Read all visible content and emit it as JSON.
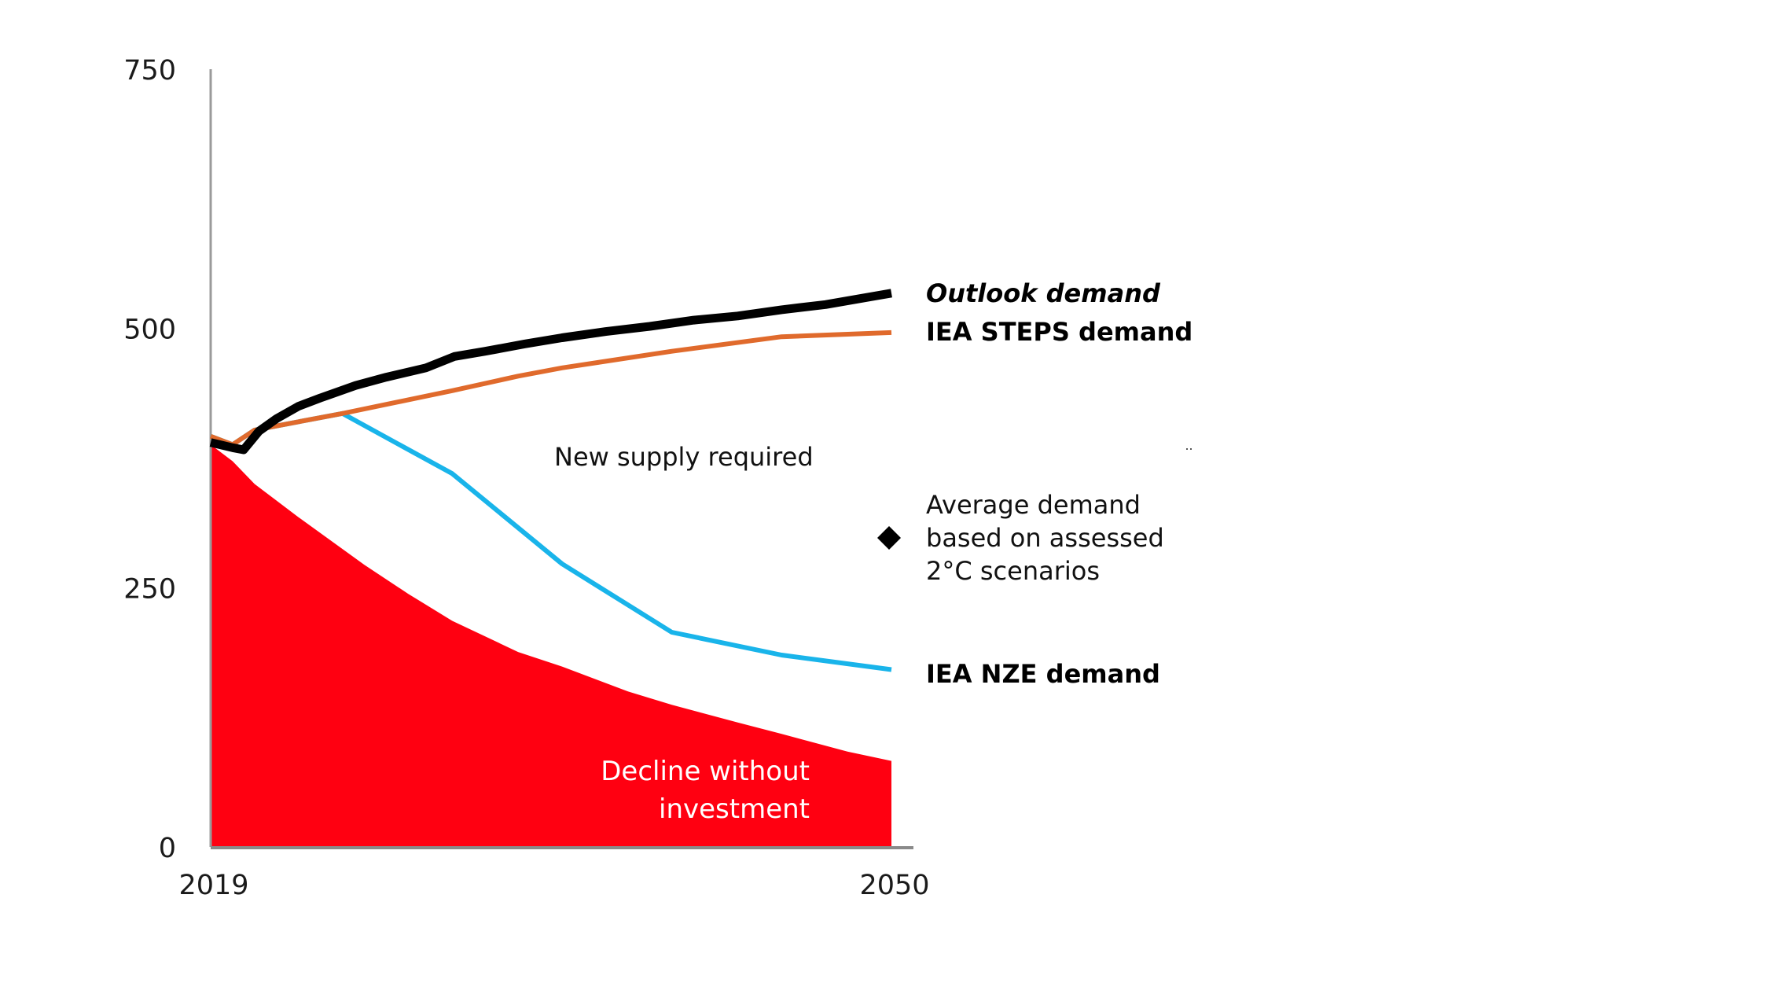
{
  "chart_data": {
    "type": "line",
    "title": "",
    "xlabel": "",
    "ylabel": "",
    "xlim": [
      2019,
      2050
    ],
    "ylim": [
      0,
      750
    ],
    "x_ticks": [
      "2019",
      "2050"
    ],
    "y_ticks": [
      "0",
      "250",
      "500",
      "750"
    ],
    "grid": false,
    "legend": "inline-right",
    "series": [
      {
        "name": "Decline without investment",
        "type": "area",
        "color": "#FF0011",
        "label_lines": [
          "Decline without",
          "investment"
        ],
        "x": [
          2019,
          2020,
          2021,
          2023,
          2026,
          2028,
          2030,
          2033,
          2035,
          2038,
          2040,
          2043,
          2045,
          2048,
          2050
        ],
        "values": [
          388,
          372,
          350,
          318,
          272,
          244,
          218,
          188,
          174,
          150,
          137,
          120,
          109,
          92,
          83
        ]
      },
      {
        "name": "IEA NZE demand",
        "type": "line",
        "color": "#19B4EA",
        "x": [
          2019,
          2020,
          2021,
          2025,
          2030,
          2035,
          2040,
          2045,
          2050
        ],
        "values": [
          396,
          388,
          402,
          418,
          360,
          273,
          207,
          185,
          171
        ]
      },
      {
        "name": "IEA STEPS demand",
        "type": "line",
        "color": "#E06A2C",
        "x": [
          2019,
          2020,
          2021,
          2025,
          2030,
          2033,
          2035,
          2040,
          2045,
          2050
        ],
        "values": [
          396,
          388,
          402,
          418,
          440,
          454,
          462,
          478,
          492,
          496
        ]
      },
      {
        "name": "Outlook demand",
        "type": "line",
        "color": "#000000",
        "x": [
          2019,
          2020,
          2020.5,
          2021.2,
          2022,
          2023,
          2024,
          2025.6,
          2027,
          2028.8,
          2030.1,
          2031.5,
          2033.3,
          2035,
          2037,
          2039,
          2041,
          2043,
          2045,
          2047,
          2050
        ],
        "values": [
          390,
          385,
          383,
          401,
          413,
          425,
          433,
          445,
          453,
          462,
          473,
          478,
          485,
          491,
          497,
          502,
          508,
          512,
          518,
          523,
          534
        ]
      },
      {
        "name": "Average demand based on assessed 2oC scenarios",
        "type": "scatter",
        "marker": "diamond",
        "color": "#000000",
        "x": [
          2050
        ],
        "values": [
          298
        ]
      }
    ],
    "annotations": [
      {
        "text": "New supply required",
        "x": 2026,
        "y": 360
      }
    ]
  },
  "labels": {
    "outlook": "Outlook demand",
    "steps": "IEA STEPS demand",
    "nze": "IEA NZE demand",
    "avg_lines": [
      "Average demand",
      "based on assessed",
      "2°C scenarios"
    ],
    "new_supply": "New supply required",
    "decline_lines": [
      "Decline without",
      "investment"
    ]
  }
}
